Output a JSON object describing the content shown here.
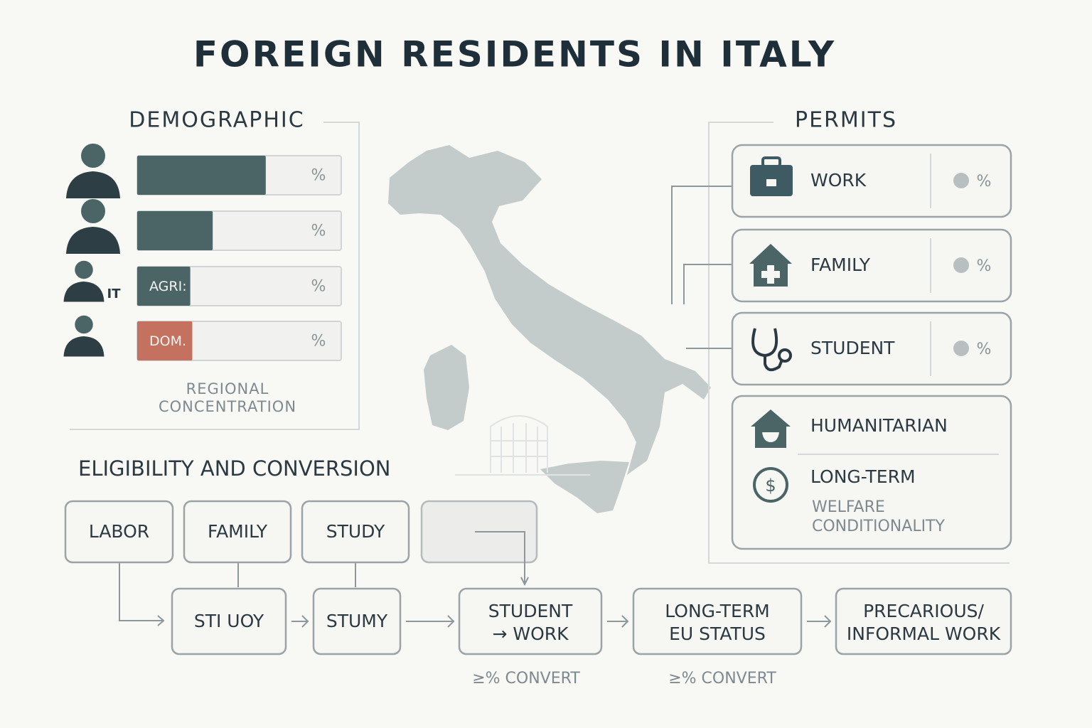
{
  "title": "FOREIGN RESIDENTS IN ITALY",
  "demographic": {
    "title": "DEMOGRAPHIC",
    "bars": [
      {
        "value": 63,
        "unit": "%",
        "color": "#4b6466"
      },
      {
        "value": 37,
        "unit": "%",
        "color": "#4b6466"
      },
      {
        "value": 26,
        "unit": "%",
        "label": "AGRI:",
        "icon_label": "IT",
        "color": "#4b6466"
      },
      {
        "value": 27,
        "unit": "%",
        "label": "DOM.",
        "color": "#c5715f"
      }
    ],
    "caption": [
      "REGIONAL",
      "CONCENTRATION"
    ]
  },
  "permits": {
    "title": "PERMITS",
    "items": [
      {
        "label": "WORK",
        "unit": "%"
      },
      {
        "label": "FAMILY",
        "unit": "%"
      },
      {
        "label": "STUDENT",
        "unit": "%"
      }
    ],
    "other": {
      "humanitarian": "HUMANITARIAN",
      "long_term": "LONG-TERM",
      "note": [
        "WELFARE",
        "CONDITIONALITY"
      ]
    }
  },
  "eligibility": {
    "title": "ELIGIBILITY AND CONVERSION",
    "top": [
      "LABOR",
      "FAMILY",
      "STUDY"
    ],
    "bottom": [
      [
        "STI UOY"
      ],
      [
        "STUMY"
      ],
      [
        "STUDENT",
        "→ WORK"
      ],
      [
        "LONG-TERM",
        "EU STATUS"
      ],
      [
        "PRECARIOUS/",
        "INFORMAL WORK"
      ]
    ],
    "notes": [
      "≥% CONVERT",
      "≥% CONVERT"
    ]
  }
}
